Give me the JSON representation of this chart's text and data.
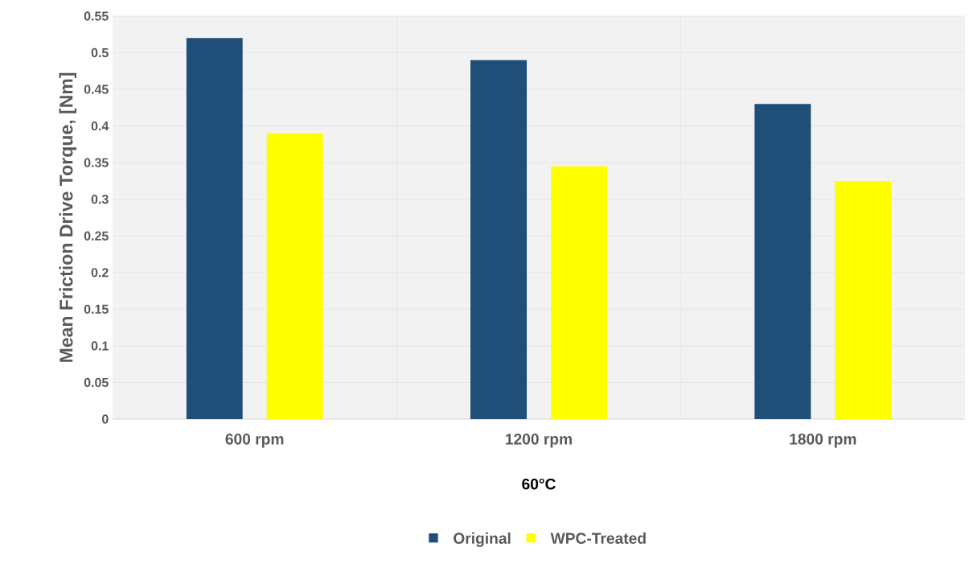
{
  "chart_data": {
    "type": "bar",
    "xlabel": "60°C",
    "ylabel": "Mean Friction Drive Torque, [Nm]",
    "categories": [
      "600 rpm",
      "1200 rpm",
      "1800 rpm"
    ],
    "series": [
      {
        "name": "Original",
        "color": "#1f4e79",
        "values": [
          0.52,
          0.49,
          0.43
        ]
      },
      {
        "name": "WPC-Treated",
        "color": "#ffff00",
        "values": [
          0.39,
          0.345,
          0.325
        ]
      }
    ],
    "ylim": [
      0,
      0.55
    ],
    "yticks": [
      0,
      0.05,
      0.1,
      0.15,
      0.2,
      0.25,
      0.3,
      0.35,
      0.4,
      0.45,
      0.5,
      0.55
    ],
    "grid": true,
    "legend": "bottom"
  }
}
